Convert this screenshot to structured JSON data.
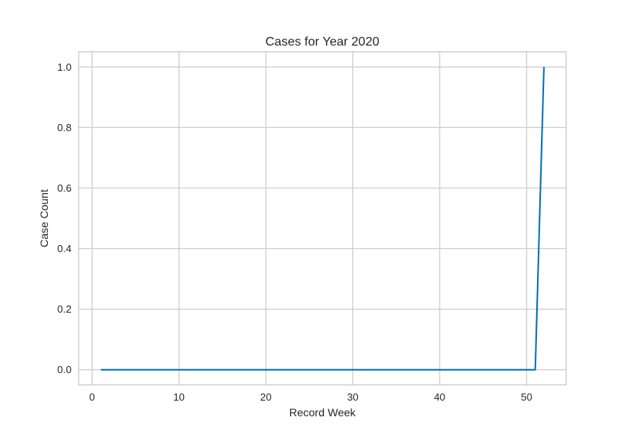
{
  "chart_data": {
    "type": "line",
    "title": "Cases for Year 2020",
    "xlabel": "Record Week",
    "ylabel": "Case Count",
    "xlim": [
      -1.55,
      54.55
    ],
    "ylim": [
      -0.05,
      1.05
    ],
    "x_ticks": [
      0,
      10,
      20,
      30,
      40,
      50
    ],
    "y_ticks": [
      0.0,
      0.2,
      0.4,
      0.6,
      0.8,
      1.0
    ],
    "x_tick_labels": [
      "0",
      "10",
      "20",
      "30",
      "40",
      "50"
    ],
    "y_tick_labels": [
      "0.0",
      "0.2",
      "0.4",
      "0.6",
      "0.8",
      "1.0"
    ],
    "grid": true,
    "line_color": "#0072b2",
    "series": [
      {
        "x": [
          1,
          2,
          3,
          4,
          5,
          6,
          7,
          8,
          9,
          10,
          11,
          12,
          13,
          14,
          15,
          16,
          17,
          18,
          19,
          20,
          21,
          22,
          23,
          24,
          25,
          26,
          27,
          28,
          29,
          30,
          31,
          32,
          33,
          34,
          35,
          36,
          37,
          38,
          39,
          40,
          41,
          42,
          43,
          44,
          45,
          46,
          47,
          48,
          49,
          50,
          51,
          52
        ],
        "values": [
          0,
          0,
          0,
          0,
          0,
          0,
          0,
          0,
          0,
          0,
          0,
          0,
          0,
          0,
          0,
          0,
          0,
          0,
          0,
          0,
          0,
          0,
          0,
          0,
          0,
          0,
          0,
          0,
          0,
          0,
          0,
          0,
          0,
          0,
          0,
          0,
          0,
          0,
          0,
          0,
          0,
          0,
          0,
          0,
          0,
          0,
          0,
          0,
          0,
          0,
          0,
          1
        ]
      }
    ]
  }
}
